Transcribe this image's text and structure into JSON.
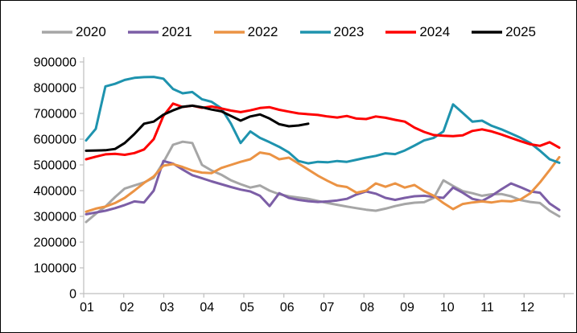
{
  "chart_data": {
    "type": "line",
    "title": "",
    "legend_position": "top",
    "grid": false,
    "x_axis": {
      "unit": "month",
      "labels": [
        "01",
        "02",
        "03",
        "04",
        "05",
        "06",
        "07",
        "08",
        "09",
        "10",
        "11",
        "12"
      ],
      "points_per_year": 50
    },
    "y_axis": {
      "min": 0,
      "max": 900000,
      "tick_step": 100000,
      "tick_labels": [
        "0",
        "100000",
        "200000",
        "300000",
        "400000",
        "500000",
        "600000",
        "700000",
        "800000",
        "900000"
      ]
    },
    "series": [
      {
        "name": "2020",
        "color": "#A6A6A6",
        "values": [
          278000,
          310000,
          338000,
          375000,
          408000,
          420000,
          432000,
          450000,
          510000,
          578000,
          590000,
          585000,
          500000,
          478000,
          462000,
          440000,
          425000,
          412000,
          420000,
          400000,
          386000,
          378000,
          373000,
          368000,
          360000,
          352000,
          345000,
          338000,
          332000,
          326000,
          322000,
          330000,
          340000,
          348000,
          353000,
          355000,
          372000,
          440000,
          418000,
          398000,
          390000,
          380000,
          386000,
          387000,
          378000,
          363000,
          356000,
          352000,
          322000,
          300000
        ]
      },
      {
        "name": "2021",
        "color": "#7C5EA6",
        "values": [
          308000,
          315000,
          322000,
          332000,
          344000,
          358000,
          354000,
          400000,
          515000,
          505000,
          482000,
          460000,
          448000,
          436000,
          425000,
          414000,
          404000,
          397000,
          380000,
          340000,
          390000,
          372000,
          364000,
          359000,
          356000,
          358000,
          362000,
          368000,
          385000,
          397000,
          388000,
          372000,
          364000,
          372000,
          378000,
          380000,
          376000,
          372000,
          412000,
          392000,
          368000,
          360000,
          380000,
          405000,
          428000,
          413000,
          397000,
          392000,
          350000,
          325000
        ]
      },
      {
        "name": "2022",
        "color": "#EB9344",
        "values": [
          318000,
          330000,
          338000,
          352000,
          372000,
          400000,
          430000,
          455000,
          497000,
          503000,
          492000,
          478000,
          470000,
          468000,
          488000,
          500000,
          512000,
          522000,
          548000,
          542000,
          522000,
          528000,
          505000,
          482000,
          458000,
          438000,
          420000,
          414000,
          392000,
          400000,
          428000,
          415000,
          428000,
          412000,
          422000,
          398000,
          380000,
          352000,
          328000,
          348000,
          354000,
          358000,
          354000,
          360000,
          358000,
          366000,
          390000,
          432000,
          480000,
          530000
        ]
      },
      {
        "name": "2023",
        "color": "#1E93AE",
        "values": [
          595000,
          640000,
          805000,
          815000,
          830000,
          838000,
          841000,
          842000,
          835000,
          795000,
          778000,
          783000,
          755000,
          745000,
          720000,
          660000,
          585000,
          630000,
          605000,
          588000,
          570000,
          548000,
          515000,
          506000,
          512000,
          510000,
          515000,
          512000,
          520000,
          528000,
          535000,
          545000,
          542000,
          556000,
          575000,
          595000,
          605000,
          630000,
          735000,
          702000,
          668000,
          672000,
          652000,
          638000,
          622000,
          605000,
          585000,
          555000,
          522000,
          508000
        ]
      },
      {
        "name": "2024",
        "color": "#FE0000",
        "values": [
          522000,
          532000,
          541000,
          543000,
          539000,
          546000,
          560000,
          600000,
          690000,
          738000,
          725000,
          730000,
          722000,
          727000,
          719000,
          711000,
          705000,
          712000,
          721000,
          724000,
          714000,
          707000,
          700000,
          697000,
          694000,
          688000,
          684000,
          690000,
          680000,
          678000,
          688000,
          683000,
          675000,
          668000,
          645000,
          628000,
          616000,
          613000,
          612000,
          615000,
          632000,
          638000,
          630000,
          618000,
          605000,
          592000,
          580000,
          574000,
          588000,
          567000
        ]
      },
      {
        "name": "2025",
        "color": "#000000",
        "values": [
          555000,
          556000,
          557000,
          562000,
          585000,
          620000,
          660000,
          668000,
          695000,
          712000,
          726000,
          730000,
          724000,
          715000,
          708000,
          690000,
          672000,
          688000,
          696000,
          680000,
          658000,
          650000,
          653000,
          660000
        ]
      }
    ]
  }
}
